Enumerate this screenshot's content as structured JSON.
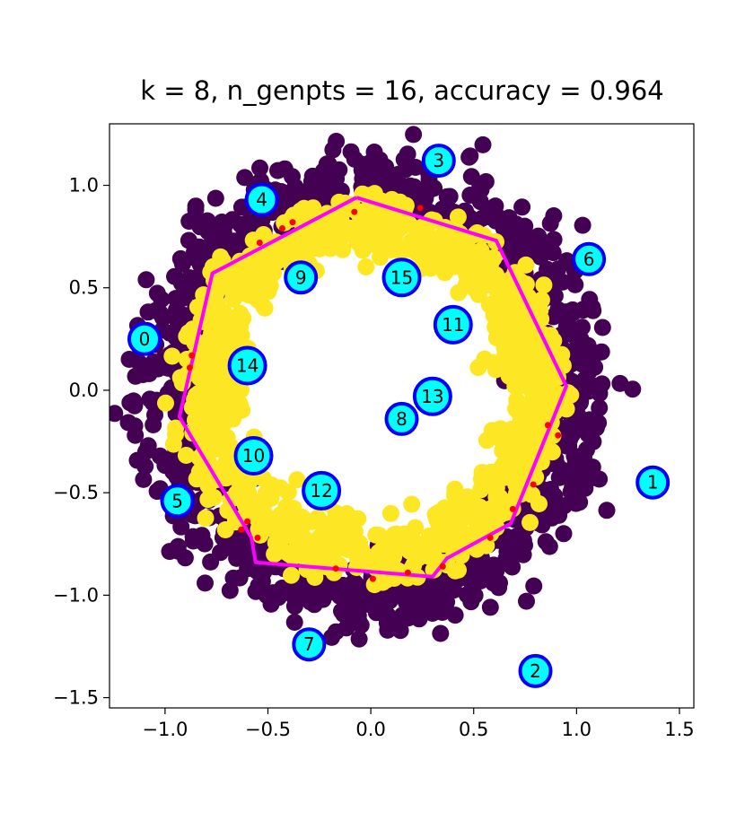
{
  "chart_data": {
    "type": "scatter",
    "title": "k = 8, n_genpts = 16, accuracy = 0.964",
    "xlim": [
      -1.27,
      1.57
    ],
    "ylim": [
      -1.55,
      1.3
    ],
    "xticks": [
      -1.0,
      -0.5,
      0.0,
      0.5,
      1.0,
      1.5
    ],
    "xtick_labels": [
      "−1.0",
      "−0.5",
      "0.0",
      "0.5",
      "1.0",
      "1.5"
    ],
    "yticks": [
      1.0,
      0.5,
      0.0,
      -0.5,
      -1.0,
      -1.5
    ],
    "ytick_labels": [
      "1.0",
      "0.5",
      "0.0",
      "−0.5",
      "−1.0",
      "−1.5"
    ],
    "grid": false,
    "colors": {
      "outer_class": "#440154",
      "inner_class": "#fde725",
      "hull": "#ff00ff",
      "misclassified": "#ff0000",
      "genpt_fill": "#00ffff",
      "genpt_edge": "#0000ff"
    },
    "rings": [
      {
        "class": "outer",
        "radius_mean": 1.0,
        "radius_spread": 0.1,
        "count": 1000
      },
      {
        "class": "inner",
        "radius_mean": 0.8,
        "radius_spread": 0.08,
        "count": 1000
      }
    ],
    "hull_polygon": [
      [
        -0.07,
        0.94
      ],
      [
        0.61,
        0.73
      ],
      [
        0.95,
        0.02
      ],
      [
        0.68,
        -0.65
      ],
      [
        0.37,
        -0.82
      ],
      [
        0.3,
        -0.91
      ],
      [
        -0.56,
        -0.84
      ],
      [
        -0.58,
        -0.72
      ],
      [
        -0.93,
        -0.13
      ],
      [
        -0.77,
        0.57
      ],
      [
        -0.07,
        0.94
      ]
    ],
    "misclassified_points": [
      [
        -0.08,
        0.87
      ],
      [
        0.24,
        0.89
      ],
      [
        -0.38,
        0.82
      ],
      [
        -0.43,
        0.79
      ],
      [
        -0.54,
        0.72
      ],
      [
        -0.87,
        0.17
      ],
      [
        -0.88,
        0.11
      ],
      [
        -0.6,
        -0.64
      ],
      [
        -0.63,
        -0.68
      ],
      [
        -0.55,
        -0.72
      ],
      [
        -0.17,
        -0.87
      ],
      [
        0.01,
        -0.92
      ],
      [
        0.18,
        -0.89
      ],
      [
        0.35,
        -0.86
      ],
      [
        0.58,
        -0.72
      ],
      [
        0.69,
        -0.58
      ],
      [
        0.79,
        -0.46
      ],
      [
        0.86,
        -0.17
      ],
      [
        0.91,
        -0.22
      ]
    ],
    "generator_points": [
      {
        "label": "0",
        "x": -1.1,
        "y": 0.25
      },
      {
        "label": "1",
        "x": 1.37,
        "y": -0.45
      },
      {
        "label": "2",
        "x": 0.8,
        "y": -1.37
      },
      {
        "label": "3",
        "x": 0.33,
        "y": 1.12
      },
      {
        "label": "4",
        "x": -0.53,
        "y": 0.93
      },
      {
        "label": "5",
        "x": -0.94,
        "y": -0.54
      },
      {
        "label": "6",
        "x": 1.06,
        "y": 0.64
      },
      {
        "label": "7",
        "x": -0.3,
        "y": -1.24
      },
      {
        "label": "8",
        "x": 0.15,
        "y": -0.14
      },
      {
        "label": "9",
        "x": -0.34,
        "y": 0.55
      },
      {
        "label": "10",
        "x": -0.57,
        "y": -0.32
      },
      {
        "label": "11",
        "x": 0.4,
        "y": 0.32
      },
      {
        "label": "12",
        "x": -0.24,
        "y": -0.49
      },
      {
        "label": "13",
        "x": 0.3,
        "y": -0.03
      },
      {
        "label": "14",
        "x": -0.6,
        "y": 0.12
      },
      {
        "label": "15",
        "x": 0.15,
        "y": 0.55
      }
    ]
  }
}
